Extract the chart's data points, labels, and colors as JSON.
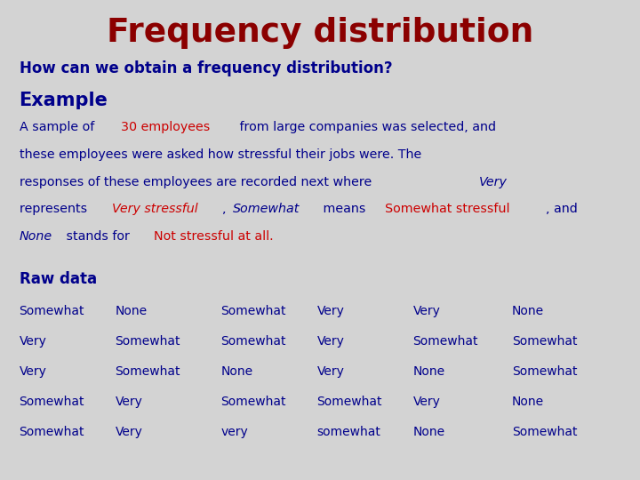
{
  "title": "Frequency distribution",
  "title_color": "#8B0000",
  "subtitle": "How can we obtain a frequency distribution?",
  "subtitle_color": "#00008B",
  "example_label": "Example",
  "example_color": "#00008B",
  "raw_data_label": "Raw data",
  "raw_data_color": "#00008B",
  "table_data": [
    [
      "Somewhat",
      "None",
      "Somewhat",
      "Very",
      "Very",
      "None"
    ],
    [
      "Very",
      "Somewhat",
      "Somewhat",
      "Very",
      "Somewhat",
      "Somewhat"
    ],
    [
      "Very",
      "Somewhat",
      "None",
      "Very",
      "None",
      "Somewhat"
    ],
    [
      "Somewhat",
      "Very",
      "Somewhat",
      "Somewhat",
      "Very",
      "None"
    ],
    [
      "Somewhat",
      "Very",
      "very",
      "somewhat",
      "None",
      "Somewhat"
    ]
  ],
  "table_color": "#00008B",
  "bg_color": "#D3D3D3",
  "para_lines": [
    [
      [
        "A sample of ",
        "#00008B",
        "normal"
      ],
      [
        "30 employees",
        "#CC0000",
        "normal"
      ],
      [
        " from large companies was selected, and",
        "#00008B",
        "normal"
      ]
    ],
    [
      [
        "these employees were asked how stressful their jobs were. The",
        "#00008B",
        "normal"
      ]
    ],
    [
      [
        "responses of these employees are recorded next where ",
        "#00008B",
        "normal"
      ],
      [
        "Very",
        "#00008B",
        "italic"
      ]
    ],
    [
      [
        "represents ",
        "#00008B",
        "normal"
      ],
      [
        "Very stressful",
        "#CC0000",
        "italic"
      ],
      [
        ", ",
        "#00008B",
        "normal"
      ],
      [
        "Somewhat",
        "#00008B",
        "italic"
      ],
      [
        " means ",
        "#00008B",
        "normal"
      ],
      [
        "Somewhat stressful",
        "#CC0000",
        "normal"
      ],
      [
        ", and",
        "#00008B",
        "normal"
      ]
    ],
    [
      [
        "None",
        "#00008B",
        "italic"
      ],
      [
        " stands for ",
        "#00008B",
        "normal"
      ],
      [
        "Not stressful at all.",
        "#CC0000",
        "normal"
      ]
    ]
  ]
}
